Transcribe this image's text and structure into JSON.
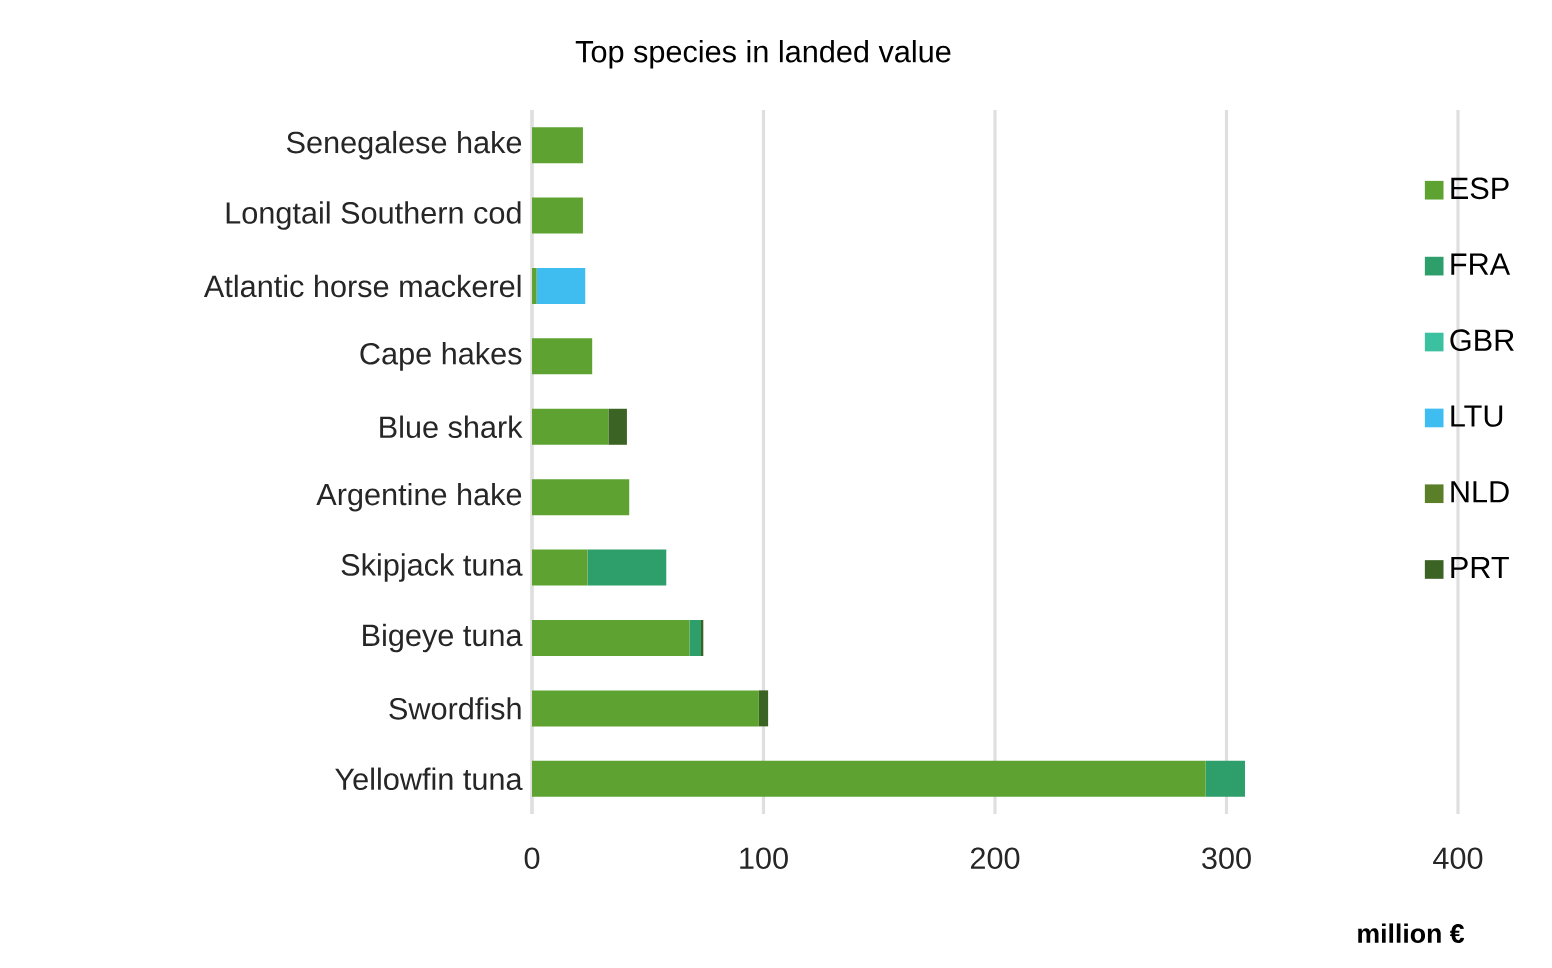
{
  "chart_data": {
    "type": "bar",
    "orientation": "horizontal",
    "stacked": true,
    "title": "Top species in landed value",
    "xlabel": "million €",
    "categories": [
      "Senegalese hake",
      "Longtail Southern cod",
      "Atlantic horse mackerel",
      "Cape hakes",
      "Blue shark",
      "Argentine hake",
      "Skipjack tuna",
      "Bigeye tuna",
      "Swordfish",
      "Yellowfin tuna"
    ],
    "series": [
      {
        "name": "ESP",
        "color": "#5ea332",
        "values": [
          22,
          22,
          2,
          26,
          33,
          42,
          24,
          68,
          98,
          291
        ]
      },
      {
        "name": "FRA",
        "color": "#2e9e6a",
        "values": [
          0,
          0,
          0,
          0,
          0,
          0,
          34,
          5,
          0,
          17
        ]
      },
      {
        "name": "GBR",
        "color": "#3cc1a0",
        "values": [
          0,
          0,
          0,
          0,
          0,
          0,
          0,
          0,
          0,
          0
        ]
      },
      {
        "name": "LTU",
        "color": "#3fbdf0",
        "values": [
          0,
          0,
          21,
          0,
          0,
          0,
          0,
          0,
          0,
          0
        ]
      },
      {
        "name": "NLD",
        "color": "#5a7f28",
        "values": [
          0,
          0,
          0,
          0,
          0,
          0,
          0,
          0,
          0,
          0
        ]
      },
      {
        "name": "PRT",
        "color": "#3a6324",
        "values": [
          0,
          0,
          0,
          0,
          8,
          0,
          0,
          1,
          4,
          0
        ]
      }
    ],
    "xlim": [
      0,
      400
    ],
    "xticks": [
      0,
      100,
      200,
      300,
      400
    ],
    "grid": "x",
    "legend": "right"
  }
}
